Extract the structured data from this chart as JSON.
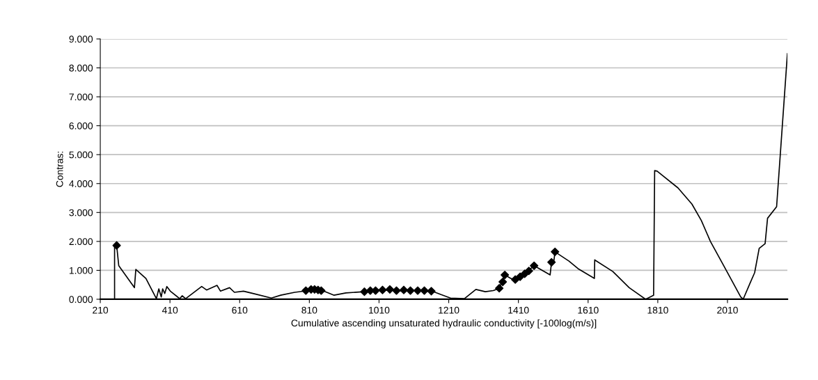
{
  "chart_data": {
    "type": "line",
    "xlabel": "Cumulative ascending unsaturated hydraulic conductivity [-100log(m/s)]",
    "ylabel": "Contras:",
    "xlim": [
      210,
      2182
    ],
    "xticks": [
      210,
      410,
      610,
      810,
      1010,
      1210,
      1410,
      1610,
      1810,
      2010
    ],
    "ylim": [
      0,
      9
    ],
    "yticks": [
      {
        "value": 0,
        "label": "0.000"
      },
      {
        "value": 1,
        "label": "1.000"
      },
      {
        "value": 2,
        "label": "2.000"
      },
      {
        "value": 3,
        "label": "3.000"
      },
      {
        "value": 4,
        "label": "4.000"
      },
      {
        "value": 5,
        "label": "5.000"
      },
      {
        "value": 6,
        "label": "6.000"
      },
      {
        "value": 7,
        "label": "7.000"
      },
      {
        "value": 8,
        "label": "8.000"
      },
      {
        "value": 9,
        "label": "9.000"
      }
    ],
    "grid": "y",
    "series": [
      {
        "color": "#000000",
        "marker": "none",
        "line_style": "solid",
        "x": [
          251,
          251,
          257,
          263,
          308,
          312,
          341,
          371,
          378,
          385,
          389,
          395,
          401,
          411,
          438,
          445,
          455,
          501,
          515,
          545,
          555,
          581,
          595,
          621,
          648,
          701,
          728,
          768,
          808,
          844,
          881,
          915,
          968,
          995,
          1041,
          1081,
          1121,
          1167,
          1188,
          1215,
          1255,
          1288,
          1315,
          1338,
          1355,
          1371,
          1388,
          1401,
          1428,
          1455,
          1501,
          1505,
          1511,
          1515,
          1555,
          1581,
          1628,
          1629,
          1681,
          1728,
          1775,
          1798,
          1801,
          1808,
          1868,
          1908,
          1935,
          1961,
          2001,
          2048,
          2055,
          2075,
          2088,
          2101,
          2118,
          2125,
          2151,
          2182
        ],
        "values": [
          0,
          1.86,
          1.86,
          1.16,
          0.4,
          1.03,
          0.72,
          0.02,
          0.36,
          0.08,
          0.36,
          0.2,
          0.44,
          0.28,
          0.02,
          0.12,
          0.02,
          0.44,
          0.32,
          0.48,
          0.28,
          0.4,
          0.24,
          0.28,
          0.2,
          0.04,
          0.14,
          0.24,
          0.3,
          0.32,
          0.14,
          0.22,
          0.26,
          0.3,
          0.32,
          0.28,
          0.3,
          0.26,
          0.16,
          0.04,
          0.02,
          0.34,
          0.26,
          0.3,
          0.38,
          0.84,
          0.72,
          0.68,
          0.88,
          1.16,
          0.84,
          1.28,
          1.24,
          1.64,
          1.32,
          1.06,
          0.72,
          1.36,
          0.96,
          0.4,
          0,
          0.14,
          4.45,
          4.43,
          3.85,
          3.29,
          2.72,
          2.0,
          1.12,
          0.08,
          0,
          0.56,
          0.92,
          1.76,
          1.92,
          2.8,
          3.2,
          8.49
        ]
      },
      {
        "type": "scatter",
        "color": "#000000",
        "marker": "diamond",
        "x": [
          257,
          800,
          815,
          825,
          835,
          844,
          968,
          985,
          1000,
          1020,
          1041,
          1060,
          1081,
          1100,
          1121,
          1140,
          1160,
          1355,
          1365,
          1371,
          1401,
          1415,
          1428,
          1440,
          1455,
          1505,
          1515
        ],
        "values": [
          1.86,
          0.3,
          0.34,
          0.34,
          0.32,
          0.3,
          0.26,
          0.3,
          0.3,
          0.32,
          0.34,
          0.3,
          0.32,
          0.3,
          0.3,
          0.3,
          0.28,
          0.38,
          0.6,
          0.84,
          0.68,
          0.78,
          0.88,
          0.98,
          1.16,
          1.28,
          1.64
        ]
      }
    ]
  }
}
